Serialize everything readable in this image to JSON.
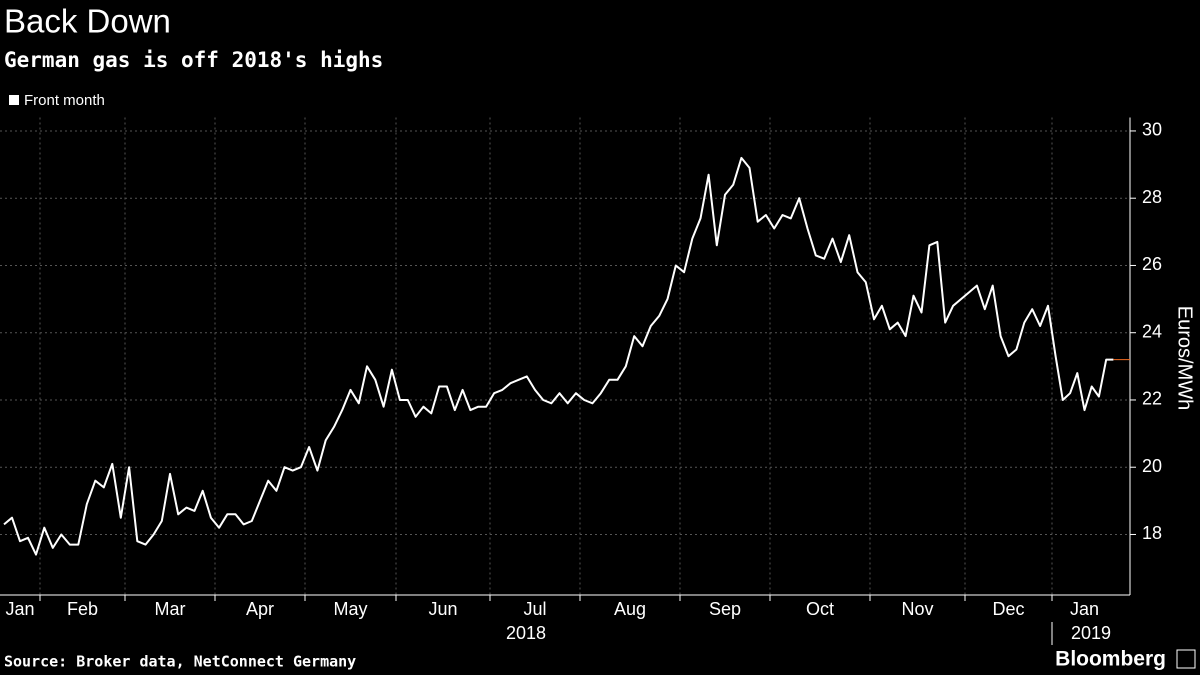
{
  "chart_data": {
    "type": "line",
    "title": "Back Down",
    "subtitle": "German gas is off 2018's highs",
    "y_label": "Euros/MWh",
    "source": "Source: Broker data, NetConnect Germany",
    "brand": "Bloomberg",
    "month_labels": [
      "Jan",
      "Feb",
      "Mar",
      "Apr",
      "May",
      "Jun",
      "Jul",
      "Aug",
      "Sep",
      "Oct",
      "Nov",
      "Dec",
      "Jan"
    ],
    "year_labels": [
      "2018",
      "2019"
    ],
    "x": [
      "2018-01",
      "2018-01",
      "2018-01",
      "2018-01",
      "2018-01",
      "2018-02",
      "2018-02",
      "2018-02",
      "2018-02",
      "2018-02",
      "2018-02",
      "2018-02",
      "2018-02",
      "2018-02",
      "2018-02",
      "2018-03",
      "2018-03",
      "2018-03",
      "2018-03",
      "2018-03",
      "2018-03",
      "2018-03",
      "2018-03",
      "2018-03",
      "2018-03",
      "2018-03",
      "2018-04",
      "2018-04",
      "2018-04",
      "2018-04",
      "2018-04",
      "2018-04",
      "2018-04",
      "2018-04",
      "2018-04",
      "2018-04",
      "2018-04",
      "2018-05",
      "2018-05",
      "2018-05",
      "2018-05",
      "2018-05",
      "2018-05",
      "2018-05",
      "2018-05",
      "2018-05",
      "2018-05",
      "2018-05",
      "2018-06",
      "2018-06",
      "2018-06",
      "2018-06",
      "2018-06",
      "2018-06",
      "2018-06",
      "2018-06",
      "2018-06",
      "2018-06",
      "2018-06",
      "2018-06",
      "2018-07",
      "2018-07",
      "2018-07",
      "2018-07",
      "2018-07",
      "2018-07",
      "2018-07",
      "2018-07",
      "2018-07",
      "2018-07",
      "2018-07",
      "2018-08",
      "2018-08",
      "2018-08",
      "2018-08",
      "2018-08",
      "2018-08",
      "2018-08",
      "2018-08",
      "2018-08",
      "2018-08",
      "2018-08",
      "2018-08",
      "2018-09",
      "2018-09",
      "2018-09",
      "2018-09",
      "2018-09",
      "2018-09",
      "2018-09",
      "2018-09",
      "2018-09",
      "2018-09",
      "2018-09",
      "2018-10",
      "2018-10",
      "2018-10",
      "2018-10",
      "2018-10",
      "2018-10",
      "2018-10",
      "2018-10",
      "2018-10",
      "2018-10",
      "2018-10",
      "2018-10",
      "2018-11",
      "2018-11",
      "2018-11",
      "2018-11",
      "2018-11",
      "2018-11",
      "2018-11",
      "2018-11",
      "2018-11",
      "2018-11",
      "2018-11",
      "2018-11",
      "2018-12",
      "2018-12",
      "2018-12",
      "2018-12",
      "2018-12",
      "2018-12",
      "2018-12",
      "2018-12",
      "2018-12",
      "2018-12",
      "2018-12",
      "2019-01",
      "2019-01",
      "2019-01",
      "2019-01",
      "2019-01",
      "2019-01",
      "2019-01",
      "2019-01",
      "2019-01"
    ],
    "series": [
      {
        "name": "Front month",
        "color": "#ffffff",
        "values": [
          18.3,
          18.5,
          17.8,
          17.9,
          17.4,
          18.2,
          17.6,
          18.0,
          17.7,
          17.7,
          18.9,
          19.6,
          19.4,
          20.1,
          18.5,
          20.0,
          17.8,
          17.7,
          18.0,
          18.4,
          19.8,
          18.6,
          18.8,
          18.7,
          19.3,
          18.5,
          18.2,
          18.6,
          18.6,
          18.3,
          18.4,
          19.0,
          19.6,
          19.3,
          20.0,
          19.9,
          20.0,
          20.6,
          19.9,
          20.8,
          21.2,
          21.7,
          22.3,
          21.9,
          23.0,
          22.6,
          21.8,
          22.9,
          22.0,
          22.0,
          21.5,
          21.8,
          21.6,
          22.4,
          22.4,
          21.7,
          22.3,
          21.7,
          21.8,
          21.8,
          22.2,
          22.3,
          22.5,
          22.6,
          22.7,
          22.3,
          22.0,
          21.9,
          22.2,
          21.9,
          22.2,
          22.0,
          21.9,
          22.2,
          22.6,
          22.6,
          23.0,
          23.9,
          23.6,
          24.2,
          24.5,
          25.0,
          26.0,
          25.8,
          26.8,
          27.4,
          28.7,
          26.6,
          28.1,
          28.4,
          29.2,
          28.9,
          27.3,
          27.5,
          27.1,
          27.5,
          27.4,
          28.0,
          27.1,
          26.3,
          26.2,
          26.8,
          26.1,
          26.9,
          25.8,
          25.5,
          24.4,
          24.8,
          24.1,
          24.3,
          23.9,
          25.1,
          24.6,
          26.6,
          26.7,
          24.3,
          24.8,
          25.0,
          25.2,
          25.4,
          24.7,
          25.4,
          23.9,
          23.3,
          23.5,
          24.3,
          24.7,
          24.2,
          24.8,
          23.3,
          22.0,
          22.2,
          22.8,
          21.7,
          22.4,
          22.1,
          23.2,
          23.2
        ]
      }
    ],
    "last_color": "#f26b21",
    "ylim": [
      16.2,
      30.4
    ],
    "yticks": [
      18,
      20,
      22,
      24,
      26,
      28,
      30
    ],
    "grid": true
  }
}
